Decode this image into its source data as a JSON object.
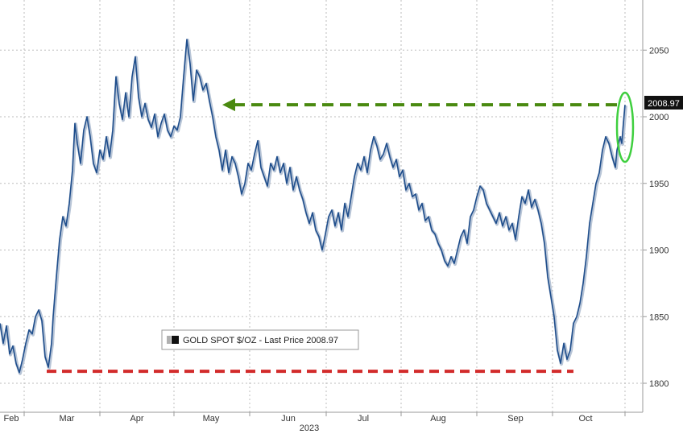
{
  "chart_data": {
    "type": "line",
    "title": "",
    "year_label": "2023",
    "x_ticks": [
      "Feb",
      "Mar",
      "Apr",
      "May",
      "Jun",
      "Jul",
      "Aug",
      "Sep",
      "Oct"
    ],
    "y_ticks": [
      "1800",
      "1850",
      "1900",
      "1950",
      "2000",
      "2050"
    ],
    "ylim": [
      1780,
      2065
    ],
    "legend": "GOLD SPOT $/OZ - Last Price 2008.97",
    "last_price_label": "2008.97",
    "last_price": 2008.97,
    "colors": {
      "line": "#1f4e8c",
      "line_shadow": "#b7c4d6",
      "green_arrow": "#4a8a10",
      "red_line": "#d22b2b",
      "circle": "#3fcf3f",
      "grid": "#bdbdbd",
      "label_box": "#111111"
    },
    "series": [
      {
        "values": [
          [
            0,
            1845
          ],
          [
            4,
            1830
          ],
          [
            8,
            1843
          ],
          [
            12,
            1822
          ],
          [
            16,
            1828
          ],
          [
            20,
            1815
          ],
          [
            24,
            1808
          ],
          [
            28,
            1818
          ],
          [
            32,
            1830
          ],
          [
            36,
            1840
          ],
          [
            40,
            1837
          ],
          [
            44,
            1850
          ],
          [
            48,
            1855
          ],
          [
            52,
            1847
          ],
          [
            56,
            1820
          ],
          [
            60,
            1812
          ],
          [
            64,
            1830
          ],
          [
            66,
            1850
          ],
          [
            70,
            1880
          ],
          [
            74,
            1908
          ],
          [
            78,
            1925
          ],
          [
            82,
            1918
          ],
          [
            86,
            1935
          ],
          [
            90,
            1960
          ],
          [
            93,
            1995
          ],
          [
            96,
            1980
          ],
          [
            100,
            1965
          ],
          [
            104,
            1990
          ],
          [
            108,
            2000
          ],
          [
            112,
            1985
          ],
          [
            116,
            1965
          ],
          [
            120,
            1958
          ],
          [
            124,
            1975
          ],
          [
            128,
            1968
          ],
          [
            132,
            1985
          ],
          [
            136,
            1970
          ],
          [
            140,
            1990
          ],
          [
            144,
            2030
          ],
          [
            148,
            2010
          ],
          [
            152,
            1998
          ],
          [
            156,
            2018
          ],
          [
            160,
            2000
          ],
          [
            164,
            2030
          ],
          [
            168,
            2045
          ],
          [
            172,
            2015
          ],
          [
            176,
            2000
          ],
          [
            180,
            2010
          ],
          [
            184,
            1998
          ],
          [
            188,
            1992
          ],
          [
            192,
            2002
          ],
          [
            196,
            1985
          ],
          [
            200,
            1995
          ],
          [
            204,
            2002
          ],
          [
            208,
            1990
          ],
          [
            212,
            1985
          ],
          [
            216,
            1993
          ],
          [
            220,
            1990
          ],
          [
            224,
            2000
          ],
          [
            228,
            2030
          ],
          [
            232,
            2058
          ],
          [
            236,
            2040
          ],
          [
            240,
            2012
          ],
          [
            244,
            2035
          ],
          [
            248,
            2030
          ],
          [
            252,
            2020
          ],
          [
            256,
            2025
          ],
          [
            260,
            2012
          ],
          [
            264,
            2000
          ],
          [
            268,
            1985
          ],
          [
            272,
            1975
          ],
          [
            276,
            1960
          ],
          [
            280,
            1975
          ],
          [
            284,
            1958
          ],
          [
            288,
            1970
          ],
          [
            292,
            1965
          ],
          [
            296,
            1955
          ],
          [
            300,
            1942
          ],
          [
            304,
            1950
          ],
          [
            308,
            1965
          ],
          [
            312,
            1960
          ],
          [
            316,
            1972
          ],
          [
            320,
            1982
          ],
          [
            324,
            1962
          ],
          [
            328,
            1955
          ],
          [
            332,
            1948
          ],
          [
            336,
            1965
          ],
          [
            340,
            1960
          ],
          [
            344,
            1970
          ],
          [
            348,
            1958
          ],
          [
            352,
            1965
          ],
          [
            356,
            1950
          ],
          [
            360,
            1962
          ],
          [
            364,
            1945
          ],
          [
            368,
            1955
          ],
          [
            372,
            1945
          ],
          [
            376,
            1938
          ],
          [
            380,
            1928
          ],
          [
            384,
            1920
          ],
          [
            388,
            1928
          ],
          [
            392,
            1915
          ],
          [
            396,
            1910
          ],
          [
            400,
            1900
          ],
          [
            404,
            1912
          ],
          [
            408,
            1925
          ],
          [
            412,
            1930
          ],
          [
            416,
            1918
          ],
          [
            420,
            1928
          ],
          [
            424,
            1915
          ],
          [
            428,
            1935
          ],
          [
            432,
            1925
          ],
          [
            436,
            1940
          ],
          [
            440,
            1955
          ],
          [
            444,
            1965
          ],
          [
            448,
            1960
          ],
          [
            452,
            1970
          ],
          [
            456,
            1958
          ],
          [
            460,
            1975
          ],
          [
            464,
            1985
          ],
          [
            468,
            1978
          ],
          [
            472,
            1968
          ],
          [
            476,
            1972
          ],
          [
            480,
            1980
          ],
          [
            484,
            1970
          ],
          [
            488,
            1962
          ],
          [
            492,
            1968
          ],
          [
            496,
            1955
          ],
          [
            500,
            1960
          ],
          [
            504,
            1945
          ],
          [
            508,
            1950
          ],
          [
            512,
            1940
          ],
          [
            516,
            1942
          ],
          [
            520,
            1930
          ],
          [
            524,
            1935
          ],
          [
            528,
            1922
          ],
          [
            532,
            1925
          ],
          [
            536,
            1915
          ],
          [
            540,
            1912
          ],
          [
            544,
            1905
          ],
          [
            548,
            1900
          ],
          [
            552,
            1892
          ],
          [
            556,
            1888
          ],
          [
            560,
            1895
          ],
          [
            564,
            1890
          ],
          [
            568,
            1900
          ],
          [
            572,
            1910
          ],
          [
            576,
            1915
          ],
          [
            580,
            1905
          ],
          [
            584,
            1925
          ],
          [
            588,
            1930
          ],
          [
            592,
            1940
          ],
          [
            596,
            1948
          ],
          [
            600,
            1945
          ],
          [
            604,
            1935
          ],
          [
            608,
            1930
          ],
          [
            612,
            1925
          ],
          [
            616,
            1920
          ],
          [
            620,
            1928
          ],
          [
            624,
            1918
          ],
          [
            628,
            1925
          ],
          [
            632,
            1915
          ],
          [
            636,
            1920
          ],
          [
            640,
            1908
          ],
          [
            644,
            1925
          ],
          [
            648,
            1940
          ],
          [
            652,
            1935
          ],
          [
            656,
            1945
          ],
          [
            660,
            1932
          ],
          [
            664,
            1938
          ],
          [
            668,
            1930
          ],
          [
            672,
            1920
          ],
          [
            676,
            1905
          ],
          [
            680,
            1880
          ],
          [
            684,
            1865
          ],
          [
            688,
            1850
          ],
          [
            692,
            1825
          ],
          [
            696,
            1815
          ],
          [
            700,
            1830
          ],
          [
            704,
            1818
          ],
          [
            708,
            1825
          ],
          [
            710,
            1835
          ],
          [
            712,
            1845
          ],
          [
            716,
            1850
          ],
          [
            720,
            1860
          ],
          [
            724,
            1875
          ],
          [
            728,
            1895
          ],
          [
            732,
            1920
          ],
          [
            736,
            1935
          ],
          [
            740,
            1950
          ],
          [
            744,
            1958
          ],
          [
            748,
            1975
          ],
          [
            752,
            1985
          ],
          [
            756,
            1980
          ],
          [
            760,
            1970
          ],
          [
            764,
            1962
          ],
          [
            766,
            1975
          ],
          [
            770,
            1985
          ],
          [
            772,
            1980
          ],
          [
            774,
            1995
          ],
          [
            776,
            2008.97
          ]
        ]
      }
    ]
  }
}
